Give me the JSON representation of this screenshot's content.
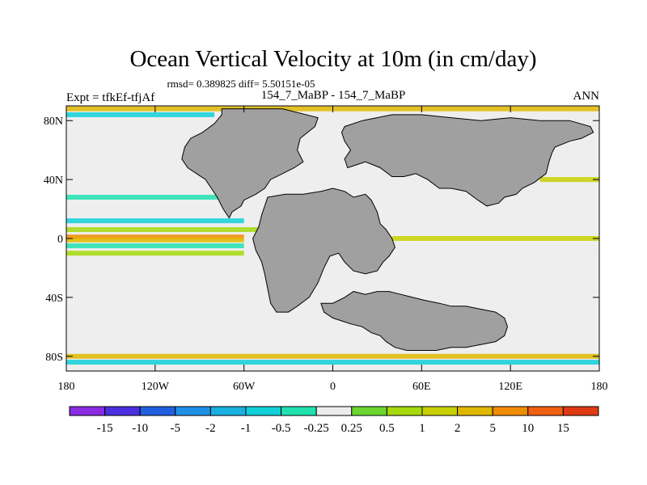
{
  "title": "Ocean Vertical Velocity at 10m (in cm/day)",
  "stats": "rmsd= 0.389825 diff= 5.50151e-05",
  "left_label": "Expt = tfkEf-tfjAf",
  "center_label": "154_7_MaBP - 154_7_MaBP",
  "right_label": "ANN",
  "lat_ticks": [
    {
      "label": "80N",
      "lat": 80
    },
    {
      "label": "40N",
      "lat": 40
    },
    {
      "label": "0",
      "lat": 0
    },
    {
      "label": "40S",
      "lat": -40
    },
    {
      "label": "80S",
      "lat": -80
    }
  ],
  "lon_ticks": [
    {
      "label": "180",
      "lon": -180
    },
    {
      "label": "120W",
      "lon": -120
    },
    {
      "label": "60W",
      "lon": -60
    },
    {
      "label": "0",
      "lon": 0
    },
    {
      "label": "60E",
      "lon": 60
    },
    {
      "label": "120E",
      "lon": 120
    },
    {
      "label": "180",
      "lon": 180
    }
  ],
  "colors": {
    "land": "#a0a0a0",
    "ocean_neutral": "#eeeeee",
    "frame": "#000000"
  },
  "colorbar": {
    "colors": [
      "#8a2be2",
      "#4a2ee0",
      "#2060e0",
      "#1f8fe6",
      "#17b0e0",
      "#10d0d8",
      "#20e0b0",
      "#ececec",
      "#6cd630",
      "#a6d80c",
      "#c8d000",
      "#e0b800",
      "#f08c00",
      "#f06010",
      "#e03a14"
    ],
    "labels": [
      "-15",
      "-10",
      "-5",
      "-2",
      "-1",
      "-0.5",
      "-0.25",
      "0.25",
      "0.5",
      "1",
      "2",
      "5",
      "10",
      "15"
    ]
  },
  "chart_data": {
    "type": "heatmap",
    "variable": "Ocean Vertical Velocity at 10m",
    "units": "cm/day",
    "xlim": [
      -180,
      180
    ],
    "ylim": [
      -90,
      90
    ],
    "levels": [
      -15,
      -10,
      -5,
      -2,
      -1,
      -0.5,
      -0.25,
      0.25,
      0.5,
      1,
      2,
      5,
      10,
      15
    ],
    "land_polygons": [
      [
        [
          -75,
          88
        ],
        [
          -34,
          88
        ],
        [
          -10,
          82
        ],
        [
          -12,
          76
        ],
        [
          -22,
          68
        ],
        [
          -24,
          60
        ],
        [
          -20,
          52
        ],
        [
          -26,
          48
        ],
        [
          -34,
          44
        ],
        [
          -42,
          40
        ],
        [
          -46,
          34
        ],
        [
          -52,
          30
        ],
        [
          -60,
          26
        ],
        [
          -62,
          22
        ],
        [
          -68,
          18
        ],
        [
          -70,
          14
        ],
        [
          -74,
          20
        ],
        [
          -78,
          28
        ],
        [
          -82,
          34
        ],
        [
          -86,
          40
        ],
        [
          -92,
          44
        ],
        [
          -98,
          48
        ],
        [
          -102,
          54
        ],
        [
          -100,
          62
        ],
        [
          -96,
          68
        ],
        [
          -88,
          72
        ],
        [
          -80,
          78
        ],
        [
          -75,
          84
        ]
      ],
      [
        [
          8,
          76
        ],
        [
          20,
          80
        ],
        [
          40,
          84
        ],
        [
          60,
          84
        ],
        [
          80,
          82
        ],
        [
          100,
          80
        ],
        [
          120,
          82
        ],
        [
          140,
          80
        ],
        [
          160,
          80
        ],
        [
          174,
          76
        ],
        [
          176,
          72
        ],
        [
          168,
          68
        ],
        [
          160,
          66
        ],
        [
          150,
          62
        ],
        [
          148,
          58
        ],
        [
          146,
          52
        ],
        [
          144,
          44
        ],
        [
          136,
          38
        ],
        [
          128,
          34
        ],
        [
          124,
          30
        ],
        [
          116,
          28
        ],
        [
          112,
          24
        ],
        [
          104,
          22
        ],
        [
          98,
          26
        ],
        [
          90,
          32
        ],
        [
          80,
          34
        ],
        [
          72,
          34
        ],
        [
          64,
          40
        ],
        [
          56,
          44
        ],
        [
          48,
          42
        ],
        [
          40,
          42
        ],
        [
          32,
          48
        ],
        [
          22,
          52
        ],
        [
          16,
          50
        ],
        [
          10,
          48
        ],
        [
          8,
          54
        ],
        [
          12,
          60
        ],
        [
          8,
          66
        ],
        [
          6,
          72
        ]
      ],
      [
        [
          -44,
          28
        ],
        [
          -32,
          30
        ],
        [
          -20,
          30
        ],
        [
          -8,
          32
        ],
        [
          0,
          34
        ],
        [
          8,
          32
        ],
        [
          14,
          28
        ],
        [
          22,
          30
        ],
        [
          26,
          26
        ],
        [
          30,
          18
        ],
        [
          32,
          10
        ],
        [
          36,
          6
        ],
        [
          40,
          0
        ],
        [
          42,
          -6
        ],
        [
          38,
          -12
        ],
        [
          34,
          -16
        ],
        [
          30,
          -22
        ],
        [
          22,
          -24
        ],
        [
          14,
          -22
        ],
        [
          8,
          -16
        ],
        [
          4,
          -10
        ],
        [
          -2,
          -12
        ],
        [
          -6,
          -20
        ],
        [
          -10,
          -30
        ],
        [
          -16,
          -40
        ],
        [
          -24,
          -46
        ],
        [
          -30,
          -50
        ],
        [
          -38,
          -50
        ],
        [
          -42,
          -44
        ],
        [
          -44,
          -34
        ],
        [
          -46,
          -24
        ],
        [
          -48,
          -16
        ],
        [
          -52,
          -8
        ],
        [
          -54,
          0
        ],
        [
          -50,
          8
        ],
        [
          -48,
          16
        ],
        [
          -46,
          22
        ]
      ],
      [
        [
          -8,
          -44
        ],
        [
          0,
          -44
        ],
        [
          8,
          -40
        ],
        [
          14,
          -36
        ],
        [
          22,
          -38
        ],
        [
          30,
          -36
        ],
        [
          38,
          -36
        ],
        [
          46,
          -38
        ],
        [
          54,
          -40
        ],
        [
          62,
          -42
        ],
        [
          72,
          -44
        ],
        [
          80,
          -46
        ],
        [
          90,
          -46
        ],
        [
          100,
          -48
        ],
        [
          110,
          -50
        ],
        [
          116,
          -54
        ],
        [
          118,
          -60
        ],
        [
          116,
          -66
        ],
        [
          110,
          -70
        ],
        [
          100,
          -72
        ],
        [
          90,
          -74
        ],
        [
          80,
          -74
        ],
        [
          70,
          -76
        ],
        [
          60,
          -76
        ],
        [
          50,
          -76
        ],
        [
          42,
          -74
        ],
        [
          36,
          -70
        ],
        [
          32,
          -66
        ],
        [
          26,
          -64
        ],
        [
          20,
          -60
        ],
        [
          12,
          -58
        ],
        [
          6,
          -56
        ],
        [
          0,
          -54
        ],
        [
          -6,
          -50
        ]
      ]
    ],
    "anomaly_bands": [
      {
        "lat": 88,
        "lon_range": [
          -180,
          180
        ],
        "value": 2
      },
      {
        "lat": 84,
        "lon_range": [
          -180,
          -80
        ],
        "value": -1
      },
      {
        "lat": 40,
        "lon_range": [
          140,
          180
        ],
        "value": 1
      },
      {
        "lat": 28,
        "lon_range": [
          -180,
          -60
        ],
        "value": -0.5
      },
      {
        "lat": 12,
        "lon_range": [
          -180,
          -60
        ],
        "value": -1
      },
      {
        "lat": 6,
        "lon_range": [
          -180,
          -50
        ],
        "value": 0.5
      },
      {
        "lat": 1,
        "lon_range": [
          -180,
          -60
        ],
        "value": 5
      },
      {
        "lat": -1,
        "lon_range": [
          -180,
          -60
        ],
        "value": 2
      },
      {
        "lat": -5,
        "lon_range": [
          -180,
          -60
        ],
        "value": -0.5
      },
      {
        "lat": -10,
        "lon_range": [
          -180,
          -60
        ],
        "value": 0.5
      },
      {
        "lat": 0,
        "lon_range": [
          40,
          180
        ],
        "value": 1
      },
      {
        "lat": -8,
        "lon_range": [
          60,
          180
        ],
        "value": -0.25
      },
      {
        "lat": -80,
        "lon_range": [
          -180,
          180
        ],
        "value": 2
      },
      {
        "lat": -84,
        "lon_range": [
          -180,
          180
        ],
        "value": -1
      }
    ]
  }
}
